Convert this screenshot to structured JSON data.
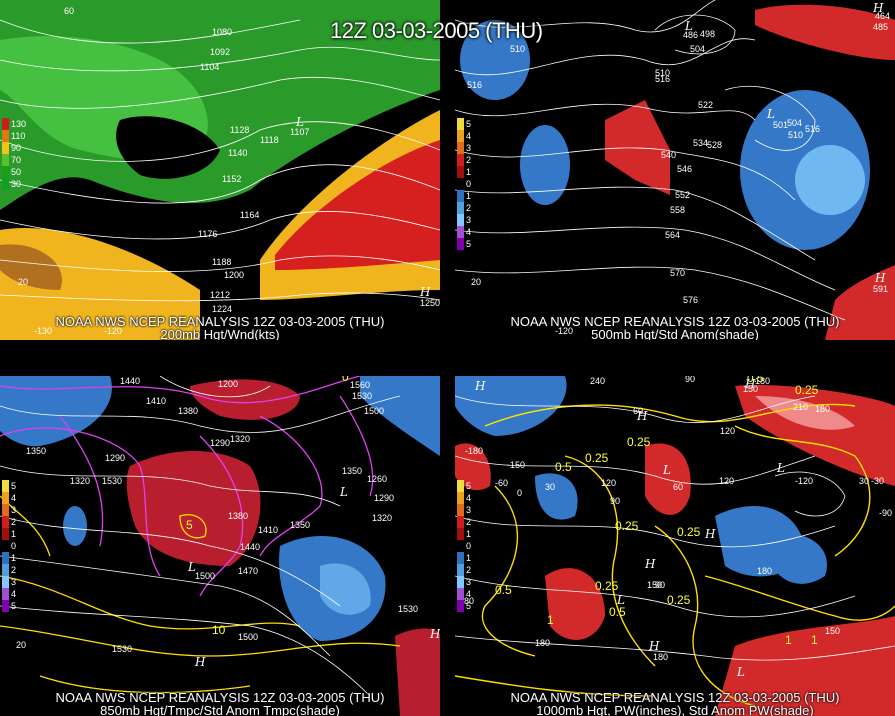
{
  "main_title": "12Z 03-03-2005 (THU)",
  "panels": [
    {
      "caption_line1": "NOAA NWS NCEP REANALYSIS 12Z 03-03-2005 (THU)",
      "caption_line2": "200mb Hgt/Wnd(kts)",
      "colorbar": [
        "130",
        "110",
        "90",
        "70",
        "50",
        "30"
      ],
      "contour_labels": [
        "1080",
        "1092",
        "1104",
        "1118",
        "1128",
        "1140",
        "1152",
        "1164",
        "1176",
        "1188",
        "1200",
        "1212",
        "1224",
        "1107",
        "1250",
        "60",
        "20",
        "-130",
        "-120"
      ],
      "lows": [
        "L"
      ],
      "highs": [
        "H"
      ]
    },
    {
      "caption_line1": "NOAA NWS NCEP REANALYSIS 12Z 03-03-2005 (THU)",
      "caption_line2": "500mb Hgt/Std Anom(shade)",
      "colorbar": [
        "5",
        "4",
        "3",
        "2",
        "1",
        "0",
        "1",
        "2",
        "3",
        "4",
        "5"
      ],
      "contour_labels": [
        "510",
        "516",
        "486",
        "498",
        "504",
        "510",
        "516",
        "522",
        "528",
        "534",
        "540",
        "546",
        "552",
        "558",
        "564",
        "570",
        "576",
        "501",
        "504",
        "510",
        "516",
        "464",
        "485",
        "591",
        "20",
        "-120"
      ],
      "lows": [
        "L",
        "L"
      ],
      "highs": [
        "H",
        "H"
      ]
    },
    {
      "caption_line1": "NOAA NWS NCEP REANALYSIS 12Z 03-03-2005 (THU)",
      "caption_line2": "850mb Hgt/Tmpc/Std Anom Tmpc(shade)",
      "colorbar": [
        "5",
        "4",
        "3",
        "2",
        "1",
        "0",
        "1",
        "2",
        "3",
        "4",
        "5"
      ],
      "contour_labels": [
        "1440",
        "1410",
        "1380",
        "1200",
        "1290",
        "1320",
        "1560",
        "1530",
        "1500",
        "1290",
        "1320",
        "1350",
        "1380",
        "1410",
        "1440",
        "1470",
        "1500",
        "1530",
        "1350",
        "1260",
        "1320",
        "1290",
        "1350",
        "1530",
        "1500",
        "1530",
        "20",
        "10",
        "5",
        "0"
      ],
      "lows": [
        "L",
        "L"
      ],
      "highs": [
        "H",
        "H"
      ]
    },
    {
      "caption_line1": "NOAA NWS NCEP REANALYSIS 12Z 03-03-2005 (THU)",
      "caption_line2": "1000mb Hgt, PW(inches), Std Anom PW(shade)",
      "colorbar": [
        "5",
        "4",
        "3",
        "2",
        "1",
        "0",
        "1",
        "2",
        "3",
        "4",
        "5"
      ],
      "contour_labels": [
        "90",
        "150",
        "180",
        "240",
        "210",
        "180",
        "120",
        "60",
        "30",
        "0",
        "-30",
        "-60",
        "-90",
        "-120",
        "-150",
        "-180",
        "120",
        "90",
        "60",
        "30",
        "180",
        "150",
        "120",
        "90",
        "180",
        "150",
        "180",
        "180",
        "0.5",
        "0.25",
        "0.5",
        "0.25",
        "0.25",
        "0.5",
        "0.25",
        "0.25",
        "1",
        "1",
        "0.25",
        "0.5",
        "0.25",
        "1"
      ],
      "lows": [
        "L",
        "L",
        "L",
        "L"
      ],
      "highs": [
        "H",
        "H",
        "H",
        "H",
        "H",
        "H"
      ]
    }
  ],
  "colors": {
    "wind_scale": [
      "#c81e1e",
      "#e07a10",
      "#f5c21b",
      "#5cc02a",
      "#1e9e1e",
      "#10a020"
    ],
    "anom_scale": [
      "#f0dc3c",
      "#f0a020",
      "#e06a20",
      "#d01e1e",
      "#a01010",
      "#000000",
      "#3070c0",
      "#50a0e0",
      "#80c8ff",
      "#a050d0",
      "#8000b0"
    ],
    "contour_white": "#ffffff",
    "contour_magenta": "#e040f0",
    "contour_yellow": "#ffe000"
  }
}
